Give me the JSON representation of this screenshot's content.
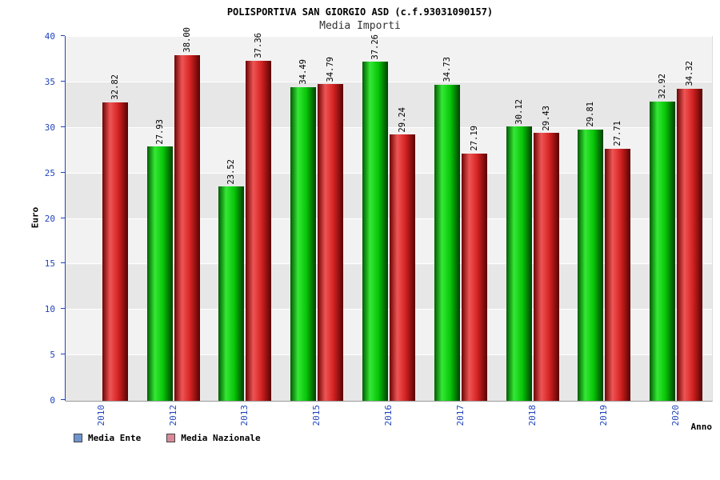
{
  "header": {
    "title": "POLISPORTIVA SAN GIORGIO ASD (c.f.93031090157)",
    "subtitle": "Media Importi"
  },
  "axes": {
    "y_label": "Euro",
    "x_label": "Anno",
    "y_ticks": [
      0,
      5,
      10,
      15,
      20,
      25,
      30,
      35,
      40
    ]
  },
  "legend": {
    "items": [
      {
        "label": "Media Ente",
        "swatch_color": "#6f95cc"
      },
      {
        "label": "Media Nazionale",
        "swatch_color": "#d98a99"
      }
    ]
  },
  "chart_data": {
    "type": "bar",
    "title": "Media Importi",
    "xlabel": "Anno",
    "ylabel": "Euro",
    "ylim": [
      0,
      40
    ],
    "grid": "horizontal-bands",
    "legend_position": "bottom-left",
    "categories": [
      "2010",
      "2012",
      "2013",
      "2015",
      "2016",
      "2017",
      "2018",
      "2019",
      "2020"
    ],
    "series": [
      {
        "name": "Media Ente",
        "color_main": "#00cc00",
        "gradient": [
          "#015b01",
          "#35e835",
          "#08c608",
          "#014001"
        ],
        "values": [
          null,
          27.93,
          23.52,
          34.49,
          37.26,
          34.73,
          30.12,
          29.81,
          32.92
        ]
      },
      {
        "name": "Media Nazionale",
        "color_main": "#dd2222",
        "gradient": [
          "#6b0505",
          "#ef5555",
          "#d42222",
          "#570303"
        ],
        "values": [
          32.82,
          38.0,
          37.36,
          34.79,
          29.24,
          27.19,
          29.43,
          27.71,
          34.32
        ]
      }
    ]
  }
}
